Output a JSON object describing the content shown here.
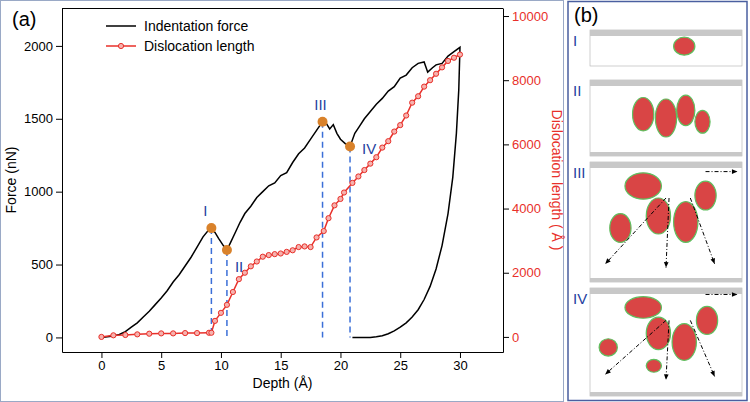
{
  "chart_data": {
    "type": "line",
    "panel_label": "(a)",
    "x_label": "Depth (Å)",
    "y_label": "Force (nN)",
    "y2_label": "Dislocation length ( Å )",
    "xlim": [
      -3.3,
      33.6
    ],
    "xticks": [
      0,
      5,
      10,
      15,
      20,
      25,
      30
    ],
    "ylim": [
      -100,
      2260
    ],
    "yticks": [
      0,
      500,
      1000,
      1500,
      2000
    ],
    "y2lim": [
      -470,
      10250
    ],
    "y2ticks": [
      0,
      2000,
      4000,
      6000,
      8000,
      10000
    ],
    "grid": false,
    "legend": "upper left",
    "series": [
      {
        "name": "Indentation force",
        "color": "#000000",
        "marker": "none",
        "line_style": "solid",
        "x": [
          0,
          0.5,
          1,
          1.5,
          2,
          2.5,
          3,
          3.5,
          4,
          4.5,
          5,
          5.5,
          6,
          6.5,
          7,
          7.5,
          8,
          8.5,
          9,
          9.2,
          9.5,
          9.8,
          10.2,
          10.5,
          10.8,
          11.2,
          11.6,
          12,
          12.5,
          13,
          13.5,
          14,
          14.5,
          15,
          15.5,
          16,
          16.5,
          17,
          17.5,
          18,
          18.5,
          18.8,
          19.1,
          19.4,
          19.7,
          20,
          20.4,
          20.8,
          21.2,
          21.6,
          22,
          22.5,
          23,
          23.5,
          24,
          24.5,
          25,
          25.5,
          26,
          26.5,
          27,
          27.3,
          27.7,
          28,
          28.5,
          29,
          29.5,
          30,
          29.9,
          29.7,
          29.4,
          29,
          28.5,
          28,
          27.5,
          27,
          26.5,
          26,
          25.5,
          25,
          24.5,
          24,
          23.5,
          23,
          22.5,
          22,
          21
        ],
        "values": [
          0,
          5,
          10,
          20,
          40,
          70,
          100,
          140,
          180,
          225,
          270,
          320,
          380,
          430,
          490,
          550,
          620,
          690,
          740,
          750,
          720,
          680,
          630,
          600,
          650,
          720,
          790,
          850,
          900,
          960,
          1000,
          1040,
          1060,
          1110,
          1130,
          1200,
          1260,
          1300,
          1360,
          1420,
          1480,
          1470,
          1430,
          1460,
          1400,
          1360,
          1330,
          1310,
          1400,
          1450,
          1500,
          1550,
          1600,
          1640,
          1690,
          1720,
          1780,
          1800,
          1850,
          1880,
          1890,
          1820,
          1850,
          1870,
          1880,
          1930,
          1960,
          1990,
          1700,
          1400,
          1100,
          850,
          630,
          470,
          350,
          260,
          190,
          140,
          100,
          70,
          45,
          25,
          12,
          5,
          0,
          0,
          0
        ]
      },
      {
        "name": "Dislocation length",
        "color": "#e8302a",
        "marker": "circle",
        "line_style": "solid",
        "axis": "y2",
        "x": [
          0,
          1,
          2,
          3,
          4,
          5,
          6,
          7,
          8,
          9,
          9.2,
          9.5,
          10,
          10.5,
          11,
          11.5,
          12,
          12.5,
          13,
          13.5,
          14,
          14.5,
          15,
          15.5,
          16,
          16.5,
          17,
          17.5,
          18,
          18.6,
          19,
          19.5,
          20,
          20.3,
          21,
          21.5,
          22,
          22.5,
          23,
          23.5,
          24,
          24.5,
          25,
          25.5,
          26,
          26.5,
          27,
          27.5,
          28,
          28.5,
          29,
          29.5,
          30
        ],
        "values": [
          0,
          50,
          60,
          80,
          100,
          110,
          110,
          120,
          120,
          130,
          130,
          500,
          750,
          1000,
          1400,
          1800,
          2000,
          2200,
          2350,
          2500,
          2550,
          2580,
          2600,
          2650,
          2700,
          2800,
          2820,
          2800,
          3100,
          3300,
          3700,
          4100,
          4300,
          4500,
          4800,
          5000,
          5200,
          5400,
          5600,
          5900,
          6100,
          6400,
          6600,
          6900,
          7300,
          7500,
          7800,
          8000,
          8200,
          8400,
          8600,
          8700,
          8800
        ]
      }
    ],
    "annotations": [
      {
        "label": "I",
        "x": 9.2,
        "y": 750
      },
      {
        "label": "II",
        "x": 10.5,
        "y": 600
      },
      {
        "label": "III",
        "x": 18.5,
        "y": 1480
      },
      {
        "label": "IV",
        "x": 20.8,
        "y": 1310
      }
    ]
  },
  "panel_b": {
    "label": "(b)",
    "frames": [
      "I",
      "II",
      "III",
      "IV"
    ]
  }
}
